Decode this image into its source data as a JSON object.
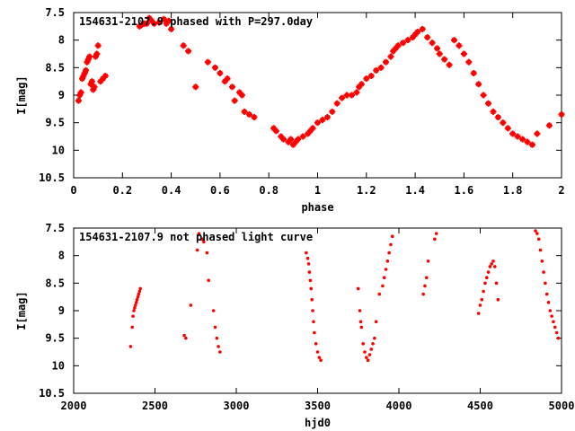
{
  "chart_data": [
    {
      "type": "scatter",
      "title": "154631-2107.9 phased with P=297.0day",
      "xlabel": "phase",
      "ylabel": "I[mag]",
      "xlim": [
        0,
        2
      ],
      "ylim": [
        10.5,
        7.5
      ],
      "y_inverted": true,
      "grid": false,
      "x_ticks": [
        "0",
        "0.2",
        "0.4",
        "0.6",
        "0.8",
        "1",
        "1.2",
        "1.4",
        "1.6",
        "1.8",
        "2"
      ],
      "x_tick_values": [
        0,
        0.2,
        0.4,
        0.6,
        0.8,
        1.0,
        1.2,
        1.4,
        1.6,
        1.8,
        2.0
      ],
      "y_ticks": [
        "7.5",
        "8",
        "8.5",
        "9",
        "9.5",
        "10",
        "10.5"
      ],
      "y_tick_values": [
        7.5,
        8,
        8.5,
        9,
        9.5,
        10,
        10.5
      ],
      "marker_color": "#ff0000",
      "marker": "star",
      "series": [
        {
          "x": [
            0.02,
            0.025,
            0.03,
            0.035,
            0.04,
            0.045,
            0.05,
            0.055,
            0.06,
            0.065,
            0.07,
            0.075,
            0.08,
            0.085,
            0.09,
            0.095,
            0.1,
            0.11,
            0.12,
            0.13,
            0.27,
            0.28,
            0.29,
            0.3,
            0.31,
            0.32,
            0.33,
            0.35,
            0.37,
            0.38,
            0.39,
            0.4,
            0.45,
            0.47,
            0.5,
            0.55,
            0.58,
            0.6,
            0.62,
            0.63,
            0.65,
            0.66,
            0.68,
            0.69,
            0.7,
            0.72,
            0.74,
            0.82,
            0.83,
            0.85,
            0.86,
            0.88,
            0.89,
            0.9,
            0.91,
            0.92,
            0.94,
            0.96,
            0.97,
            0.98,
            1.0,
            1.02,
            1.04,
            1.06,
            1.08,
            1.1,
            1.12,
            1.14,
            1.16,
            1.17,
            1.18,
            1.2,
            1.22,
            1.24,
            1.26,
            1.28,
            1.3,
            1.31,
            1.32,
            1.33,
            1.35,
            1.37,
            1.39,
            1.4,
            1.41,
            1.43,
            1.45,
            1.47,
            1.49,
            1.5,
            1.52,
            1.54,
            1.56,
            1.58,
            1.6,
            1.62,
            1.64,
            1.66,
            1.68,
            1.7,
            1.72,
            1.74,
            1.76,
            1.78,
            1.8,
            1.82,
            1.84,
            1.86,
            1.88,
            1.9,
            1.95,
            2.0
          ],
          "y": [
            9.1,
            9.0,
            8.95,
            8.7,
            8.65,
            8.6,
            8.55,
            8.4,
            8.35,
            8.3,
            8.8,
            8.75,
            8.9,
            8.85,
            8.3,
            8.25,
            8.1,
            8.75,
            8.7,
            8.65,
            7.75,
            7.72,
            7.7,
            7.7,
            7.6,
            7.65,
            7.7,
            7.68,
            7.62,
            7.7,
            7.65,
            7.8,
            8.1,
            8.2,
            8.85,
            8.4,
            8.5,
            8.6,
            8.75,
            8.7,
            8.85,
            9.1,
            8.95,
            9.0,
            9.3,
            9.35,
            9.4,
            9.6,
            9.65,
            9.75,
            9.8,
            9.85,
            9.8,
            9.9,
            9.85,
            9.8,
            9.75,
            9.7,
            9.65,
            9.6,
            9.5,
            9.45,
            9.4,
            9.3,
            9.15,
            9.05,
            9.0,
            9.0,
            8.95,
            8.85,
            8.8,
            8.7,
            8.65,
            8.55,
            8.5,
            8.4,
            8.3,
            8.2,
            8.15,
            8.1,
            8.05,
            8.0,
            7.95,
            7.9,
            7.85,
            7.8,
            7.95,
            8.05,
            8.15,
            8.25,
            8.35,
            8.45,
            8.0,
            8.1,
            8.25,
            8.4,
            8.6,
            8.8,
            9.0,
            9.15,
            9.3,
            9.4,
            9.5,
            9.6,
            9.7,
            9.75,
            9.8,
            9.85,
            9.9,
            9.7,
            9.55,
            9.35
          ]
        }
      ]
    },
    {
      "type": "scatter",
      "title": "154631-2107.9 not phased light curve",
      "xlabel": "hjd0",
      "ylabel": "I[mag]",
      "xlim": [
        2000,
        5000
      ],
      "ylim": [
        10.5,
        7.5
      ],
      "y_inverted": true,
      "grid": false,
      "x_ticks": [
        "2000",
        "2500",
        "3000",
        "3500",
        "4000",
        "4500",
        "5000"
      ],
      "x_tick_values": [
        2000,
        2500,
        3000,
        3500,
        4000,
        4500,
        5000
      ],
      "y_ticks": [
        "7.5",
        "8",
        "8.5",
        "9",
        "9.5",
        "10",
        "10.5"
      ],
      "y_tick_values": [
        7.5,
        8,
        8.5,
        9,
        9.5,
        10,
        10.5
      ],
      "marker_color": "#ff0000",
      "marker": "dot",
      "series": [
        {
          "x": [
            2350,
            2360,
            2365,
            2370,
            2375,
            2380,
            2385,
            2390,
            2395,
            2400,
            2405,
            2410,
            2680,
            2690,
            2720,
            2760,
            2770,
            2790,
            2800,
            2820,
            2830,
            2860,
            2870,
            2880,
            2890,
            2900,
            3430,
            3440,
            3445,
            3450,
            3455,
            3460,
            3465,
            3470,
            3475,
            3480,
            3490,
            3500,
            3510,
            3520,
            3750,
            3760,
            3765,
            3770,
            3780,
            3790,
            3800,
            3810,
            3820,
            3830,
            3840,
            3850,
            3860,
            3880,
            3900,
            3910,
            3920,
            3930,
            3940,
            3950,
            3960,
            4150,
            4160,
            4170,
            4180,
            4220,
            4230,
            4490,
            4500,
            4510,
            4520,
            4530,
            4540,
            4550,
            4560,
            4570,
            4580,
            4590,
            4600,
            4610,
            4840,
            4850,
            4860,
            4870,
            4880,
            4890,
            4900,
            4910,
            4920,
            4930,
            4940,
            4950,
            4960,
            4970,
            4980
          ],
          "y": [
            9.65,
            9.3,
            9.1,
            9.0,
            8.95,
            8.9,
            8.85,
            8.8,
            8.75,
            8.7,
            8.65,
            8.6,
            9.45,
            9.5,
            8.9,
            7.9,
            7.6,
            7.7,
            7.75,
            7.95,
            8.45,
            9.0,
            9.3,
            9.5,
            9.65,
            9.75,
            7.95,
            8.05,
            8.15,
            8.3,
            8.45,
            8.6,
            8.8,
            9.0,
            9.2,
            9.4,
            9.6,
            9.75,
            9.85,
            9.9,
            8.6,
            9.0,
            9.2,
            9.3,
            9.6,
            9.75,
            9.85,
            9.9,
            9.8,
            9.7,
            9.6,
            9.5,
            9.2,
            8.7,
            8.55,
            8.4,
            8.25,
            8.1,
            7.95,
            7.8,
            7.65,
            8.7,
            8.55,
            8.4,
            8.1,
            7.7,
            7.6,
            9.05,
            8.9,
            8.8,
            8.65,
            8.5,
            8.4,
            8.3,
            8.2,
            8.15,
            8.1,
            8.2,
            8.5,
            8.8,
            7.55,
            7.6,
            7.7,
            7.9,
            8.1,
            8.3,
            8.5,
            8.7,
            8.85,
            9.0,
            9.1,
            9.2,
            9.3,
            9.4,
            9.5
          ]
        }
      ]
    }
  ]
}
